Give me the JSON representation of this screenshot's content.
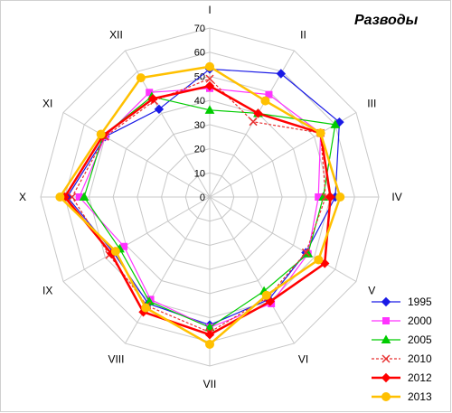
{
  "chart_data": {
    "type": "radar",
    "title": "Разводы",
    "categories": [
      "I",
      "II",
      "III",
      "IV",
      "V",
      "VI",
      "VII",
      "VIII",
      "IX",
      "X",
      "XI",
      "XII"
    ],
    "rlim": [
      0,
      70
    ],
    "r_ticks": [
      "0",
      "10",
      "20",
      "30",
      "40",
      "50",
      "60",
      "70"
    ],
    "grid": true,
    "legend_position": "bottom-right",
    "series": [
      {
        "name": "1995",
        "color": "#1a1ae6",
        "dash": false,
        "marker": "diamond",
        "values": [
          53,
          59,
          62,
          52,
          46,
          49,
          53,
          51,
          46,
          59,
          50,
          42
        ]
      },
      {
        "name": "2000",
        "color": "#ff33ff",
        "dash": false,
        "marker": "square",
        "values": [
          45,
          49,
          53,
          45,
          47,
          51,
          54,
          49,
          41,
          54,
          50,
          50
        ]
      },
      {
        "name": "2005",
        "color": "#00cc00",
        "dash": false,
        "marker": "triangle",
        "values": [
          36,
          40,
          60,
          47,
          47,
          45,
          54,
          50,
          43,
          52,
          51,
          48
        ]
      },
      {
        "name": "2010",
        "color": "#e83030",
        "dash": true,
        "marker": "x",
        "values": [
          49,
          36,
          53,
          48,
          46,
          48,
          56,
          52,
          48,
          57,
          50,
          46
        ]
      },
      {
        "name": "2012",
        "color": "#ff0000",
        "dash": false,
        "marker": "diamond",
        "values": [
          46,
          40,
          53,
          50,
          55,
          50,
          57,
          55,
          47,
          60,
          51,
          47
        ]
      },
      {
        "name": "2013",
        "color": "#ffc000",
        "dash": false,
        "marker": "circle",
        "values": [
          54,
          46,
          53,
          54,
          52,
          47,
          61,
          53,
          45,
          62,
          52,
          57
        ]
      }
    ]
  }
}
